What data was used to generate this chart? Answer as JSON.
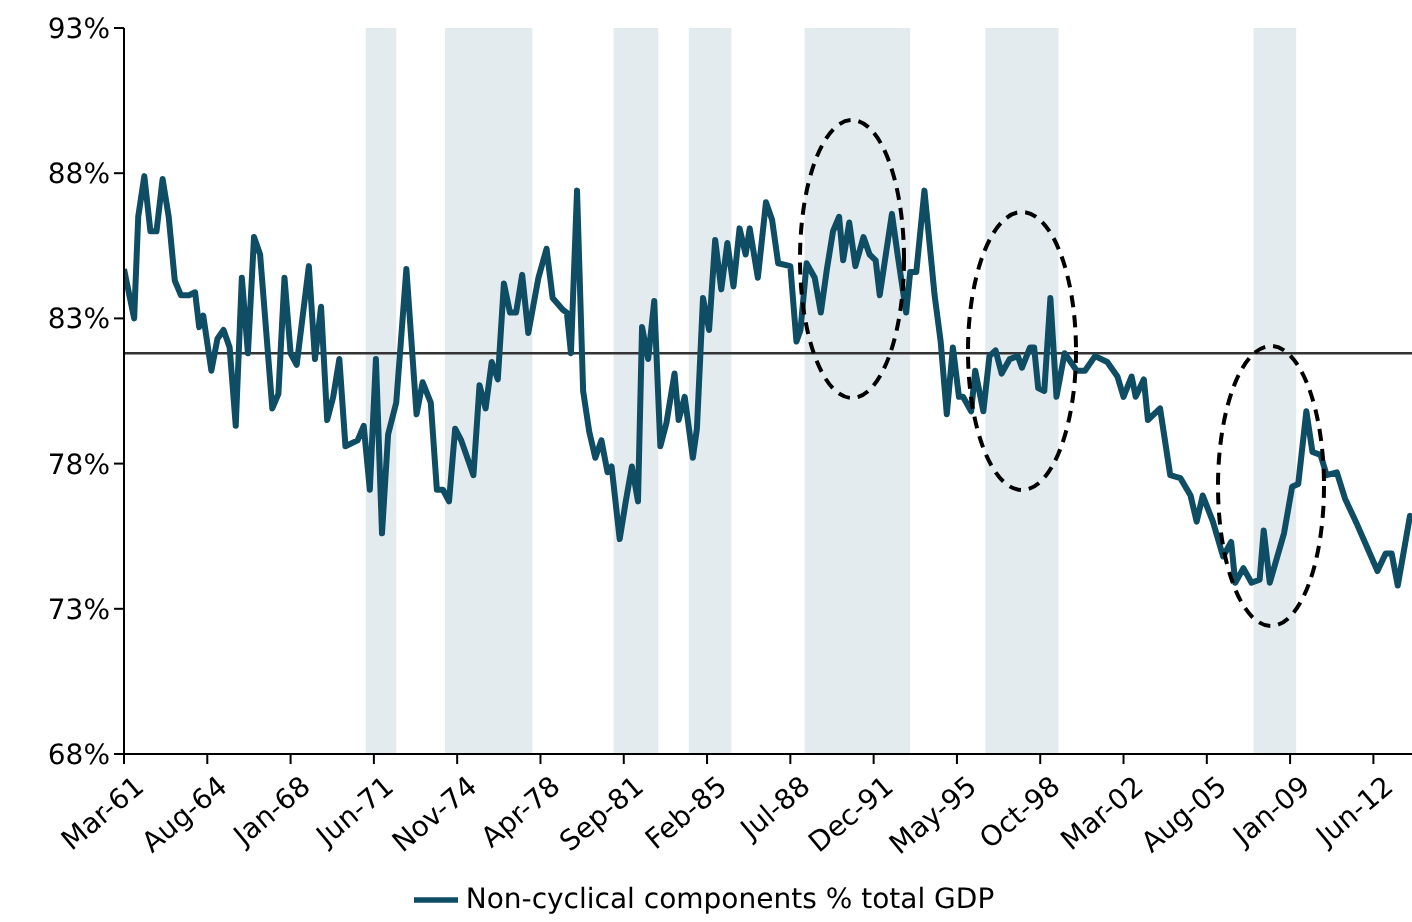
{
  "chart_data": {
    "type": "line",
    "legend": "bottom",
    "grid": false,
    "marker": "none",
    "line_style": "solid",
    "xlim": [
      "1961-03",
      "2014-01"
    ],
    "xticks": [
      {
        "value": "1961-03",
        "label": "Mar-61"
      },
      {
        "value": "1964-08",
        "label": "Aug-64"
      },
      {
        "value": "1968-01",
        "label": "Jan-68"
      },
      {
        "value": "1971-06",
        "label": "Jun-71"
      },
      {
        "value": "1974-11",
        "label": "Nov-74"
      },
      {
        "value": "1978-04",
        "label": "Apr-78"
      },
      {
        "value": "1981-09",
        "label": "Sep-81"
      },
      {
        "value": "1985-02",
        "label": "Feb-85"
      },
      {
        "value": "1988-07",
        "label": "Jul-88"
      },
      {
        "value": "1991-12",
        "label": "Dec-91"
      },
      {
        "value": "1995-05",
        "label": "May-95"
      },
      {
        "value": "1998-10",
        "label": "Oct-98"
      },
      {
        "value": "2002-03",
        "label": "Mar-02"
      },
      {
        "value": "2005-08",
        "label": "Aug-05"
      },
      {
        "value": "2009-01",
        "label": "Jan-09"
      },
      {
        "value": "2012-06",
        "label": "Jun-12"
      }
    ],
    "ylim": [
      68,
      93
    ],
    "yticks": [
      {
        "value": 68,
        "label": "68%"
      },
      {
        "value": 73,
        "label": "73%"
      },
      {
        "value": 78,
        "label": "78%"
      },
      {
        "value": 83,
        "label": "83%"
      },
      {
        "value": 88,
        "label": "88%"
      },
      {
        "value": 93,
        "label": "93%"
      }
    ],
    "ref_lines": [
      {
        "axis": "y",
        "value": 81.8,
        "color": "#333333",
        "line_style": "solid"
      }
    ],
    "bands": [
      {
        "axis": "x",
        "from": "1971-02",
        "to": "1972-05",
        "color": "#e3ebee"
      },
      {
        "axis": "x",
        "from": "1974-05",
        "to": "1977-12",
        "color": "#e3ebee"
      },
      {
        "axis": "x",
        "from": "1981-04",
        "to": "1983-02",
        "color": "#e3ebee"
      },
      {
        "axis": "x",
        "from": "1984-05",
        "to": "1986-02",
        "color": "#e3ebee"
      },
      {
        "axis": "x",
        "from": "1989-02",
        "to": "1993-06",
        "color": "#e3ebee"
      },
      {
        "axis": "x",
        "from": "1996-07",
        "to": "1999-07",
        "color": "#e3ebee"
      },
      {
        "axis": "x",
        "from": "2007-07",
        "to": "2009-04",
        "color": "#e3ebee"
      }
    ],
    "series": [
      {
        "name": "Non-cyclical components % total GDP",
        "color": "#0e4d64",
        "x": [
          "1961-03",
          "1961-08",
          "1961-10",
          "1962-01",
          "1962-04",
          "1962-07",
          "1962-10",
          "1963-01",
          "1963-04",
          "1963-07",
          "1963-11",
          "1964-02",
          "1964-04",
          "1964-06",
          "1964-10",
          "1965-01",
          "1965-04",
          "1965-07",
          "1965-10",
          "1966-01",
          "1966-04",
          "1966-07",
          "1966-10",
          "1967-04",
          "1967-07",
          "1967-10",
          "1968-01",
          "1968-04",
          "1968-10",
          "1969-01",
          "1969-04",
          "1969-07",
          "1969-10",
          "1970-01",
          "1970-04",
          "1970-10",
          "1971-01",
          "1971-04",
          "1971-07",
          "1971-10",
          "1972-01",
          "1972-05",
          "1972-10",
          "1973-03",
          "1973-06",
          "1973-10",
          "1974-01",
          "1974-04",
          "1974-07",
          "1974-10",
          "1975-01",
          "1975-07",
          "1975-10",
          "1976-01",
          "1976-04",
          "1976-07",
          "1976-10",
          "1977-01",
          "1977-04",
          "1977-07",
          "1977-10",
          "1978-03",
          "1978-07",
          "1978-10",
          "1979-03",
          "1979-05",
          "1979-07",
          "1979-10",
          "1980-01",
          "1980-04",
          "1980-07",
          "1980-10",
          "1981-01",
          "1981-03",
          "1981-07",
          "1981-10",
          "1982-01",
          "1982-04",
          "1982-06",
          "1982-09",
          "1982-12",
          "1983-03",
          "1983-06",
          "1983-10",
          "1983-12",
          "1984-03",
          "1984-07",
          "1984-09",
          "1984-12",
          "1985-03",
          "1985-06",
          "1985-09",
          "1985-12",
          "1986-03",
          "1986-06",
          "1986-09",
          "1986-11",
          "1987-03",
          "1987-07",
          "1987-10",
          "1988-01",
          "1988-07",
          "1988-10",
          "1988-12",
          "1989-03",
          "1989-07",
          "1989-10",
          "1990-01",
          "1990-04",
          "1990-07",
          "1990-09",
          "1990-12",
          "1991-03",
          "1991-07",
          "1991-10",
          "1992-01",
          "1992-03",
          "1992-09",
          "1992-12",
          "1993-04",
          "1993-06",
          "1993-09",
          "1994-01",
          "1994-06",
          "1994-09",
          "1994-12",
          "1995-03",
          "1995-06",
          "1995-08",
          "1995-12",
          "1996-02",
          "1996-06",
          "1996-09",
          "1996-12",
          "1997-03",
          "1997-07",
          "1997-11",
          "1998-01",
          "1998-05",
          "1998-07",
          "1998-09",
          "1998-12",
          "1999-03",
          "1999-06",
          "1999-10",
          "2000-04",
          "2000-08",
          "2001-01",
          "2001-07",
          "2001-12",
          "2002-03",
          "2002-07",
          "2002-09",
          "2003-01",
          "2003-03",
          "2003-09",
          "2004-02",
          "2004-07",
          "2004-12",
          "2005-03",
          "2005-06",
          "2005-11",
          "2006-04",
          "2006-08",
          "2006-10",
          "2007-02",
          "2007-06",
          "2007-10",
          "2007-12",
          "2008-03",
          "2008-10",
          "2009-02",
          "2009-05",
          "2009-09",
          "2009-12",
          "2010-04",
          "2010-07",
          "2010-12",
          "2011-04",
          "2011-10",
          "2012-03",
          "2012-08",
          "2012-12",
          "2013-03",
          "2013-06",
          "2013-09",
          "2013-12",
          "2014-01"
        ],
        "values": [
          84.7,
          83.0,
          86.5,
          87.9,
          86.0,
          86.0,
          87.8,
          86.5,
          84.3,
          83.8,
          83.8,
          83.9,
          82.7,
          83.1,
          81.2,
          82.3,
          82.6,
          82.0,
          79.3,
          84.4,
          81.8,
          85.8,
          85.2,
          79.9,
          80.4,
          84.4,
          81.8,
          81.4,
          84.8,
          81.6,
          83.4,
          79.5,
          80.3,
          81.6,
          78.6,
          78.8,
          79.3,
          77.1,
          81.6,
          75.6,
          79.0,
          80.1,
          84.7,
          79.7,
          80.8,
          80.1,
          77.1,
          77.1,
          76.7,
          79.2,
          78.8,
          77.6,
          80.7,
          79.9,
          81.5,
          80.9,
          84.2,
          83.2,
          83.2,
          84.5,
          82.5,
          84.4,
          85.4,
          83.7,
          83.3,
          83.2,
          81.8,
          87.4,
          80.5,
          79.1,
          78.2,
          78.8,
          77.7,
          77.9,
          75.4,
          76.7,
          77.9,
          76.7,
          82.7,
          81.6,
          83.6,
          78.6,
          79.4,
          81.1,
          79.5,
          80.3,
          78.2,
          79.2,
          83.7,
          82.6,
          85.7,
          84.0,
          85.6,
          84.1,
          86.1,
          85.2,
          86.1,
          84.4,
          87.0,
          86.4,
          84.9,
          84.8,
          82.2,
          82.6,
          84.9,
          84.4,
          83.2,
          84.7,
          86.0,
          86.5,
          85.0,
          86.3,
          84.8,
          85.8,
          85.2,
          85.0,
          83.8,
          86.6,
          85.1,
          83.2,
          84.6,
          84.6,
          87.4,
          83.8,
          82.2,
          79.7,
          82.0,
          80.3,
          80.3,
          79.8,
          81.2,
          79.8,
          81.7,
          81.9,
          81.1,
          81.6,
          81.7,
          81.3,
          82.0,
          82.0,
          80.6,
          80.5,
          83.7,
          80.3,
          81.8,
          81.2,
          81.2,
          81.7,
          81.5,
          81.0,
          80.3,
          81.0,
          80.3,
          80.9,
          79.5,
          79.9,
          77.6,
          77.5,
          76.9,
          76.0,
          76.9,
          76.0,
          74.8,
          75.3,
          73.9,
          74.4,
          73.9,
          74.0,
          75.7,
          73.9,
          75.6,
          77.2,
          77.3,
          79.8,
          78.4,
          78.3,
          77.6,
          77.7,
          76.8,
          75.9,
          75.1,
          74.3,
          74.9,
          74.9,
          73.8,
          75.0,
          76.2,
          76.0
        ]
      }
    ]
  }
}
